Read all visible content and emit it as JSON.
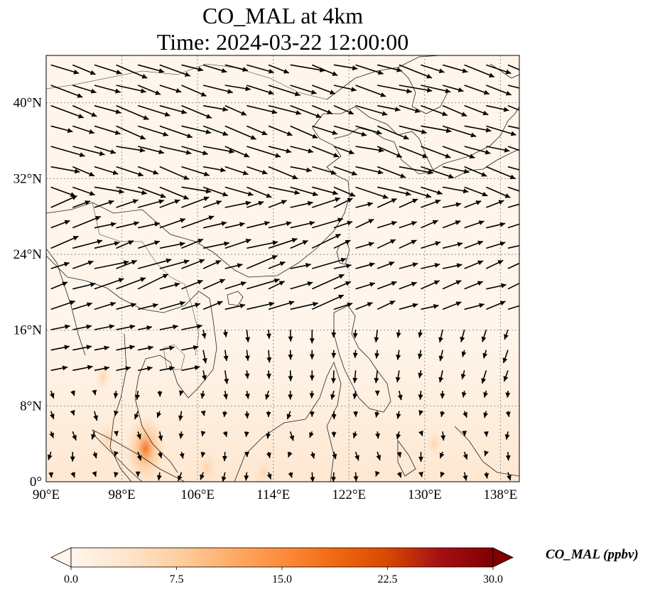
{
  "title_line1": "CO_MAL at 4km",
  "title_line2": "Time: 2024-03-22 12:00:00",
  "map": {
    "lon_range": [
      90,
      140
    ],
    "lat_range": [
      0,
      45
    ],
    "gridlines": true,
    "x_ticks": [
      "90°E",
      "98°E",
      "106°E",
      "114°E",
      "122°E",
      "130°E",
      "138°E"
    ],
    "x_tick_values": [
      90,
      98,
      106,
      114,
      122,
      130,
      138
    ],
    "y_ticks": [
      "0°",
      "8°N",
      "16°N",
      "24°N",
      "32°N",
      "40°N"
    ],
    "y_tick_values": [
      0,
      8,
      16,
      24,
      32,
      40
    ],
    "field_color_low": "#fff5eb",
    "field_color_high": "#7f0000",
    "hotspots": [
      {
        "lon": 100.5,
        "lat": 3.5,
        "value": 12
      },
      {
        "lon": 96.5,
        "lat": 4.5,
        "value": 5
      },
      {
        "lon": 107,
        "lat": 1.5,
        "value": 5
      },
      {
        "lon": 131,
        "lat": 4,
        "value": 3
      },
      {
        "lon": 96,
        "lat": 11,
        "value": 3
      },
      {
        "lon": 113,
        "lat": 1,
        "value": 3
      }
    ]
  },
  "colorbar": {
    "label": "CO_MAL (ppbv)",
    "min": 0,
    "max": 30,
    "ticks": [
      "0.0",
      "7.5",
      "15.0",
      "22.5",
      "30.0"
    ],
    "tick_values": [
      0,
      7.5,
      15,
      22.5,
      30
    ],
    "colors": [
      "#fff5eb",
      "#fee6ce",
      "#fdd0a2",
      "#fdae6b",
      "#fd8d3c",
      "#f16913",
      "#d94801",
      "#a50f15",
      "#7f0000"
    ]
  },
  "chart_data": {
    "type": "heatmap",
    "title": "CO_MAL at 4km\nTime: 2024-03-22 12:00:00",
    "xlim": [
      90,
      140
    ],
    "ylim": [
      0,
      45
    ],
    "vector_field": "wind arrows"
  }
}
